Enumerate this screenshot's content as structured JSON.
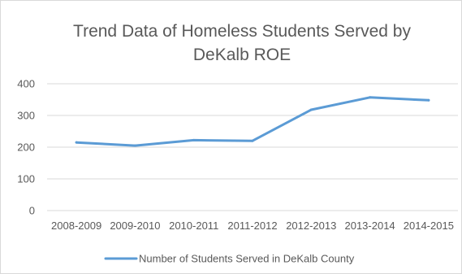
{
  "chart_data": {
    "type": "line",
    "title": "Trend Data of Homeless Students Served by DeKalb ROE",
    "title_lines": [
      "Trend Data of Homeless Students Served by",
      "DeKalb ROE"
    ],
    "categories": [
      "2008-2009",
      "2009-2010",
      "2010-2011",
      "2011-2012",
      "2012-2013",
      "2013-2014",
      "2014-2015"
    ],
    "series": [
      {
        "name": "Number of Students Served in DeKalb County",
        "values": [
          215,
          205,
          222,
          220,
          318,
          357,
          348
        ],
        "color": "#5b9bd5"
      }
    ],
    "ylim": [
      0,
      400
    ],
    "yticks": [
      "0",
      "100",
      "200",
      "300",
      "400"
    ],
    "xlabel": "",
    "ylabel": "",
    "grid": true,
    "legend_position": "bottom"
  },
  "colors": {
    "grid": "#d9d9d9",
    "text": "#595959",
    "line": "#5b9bd5"
  }
}
